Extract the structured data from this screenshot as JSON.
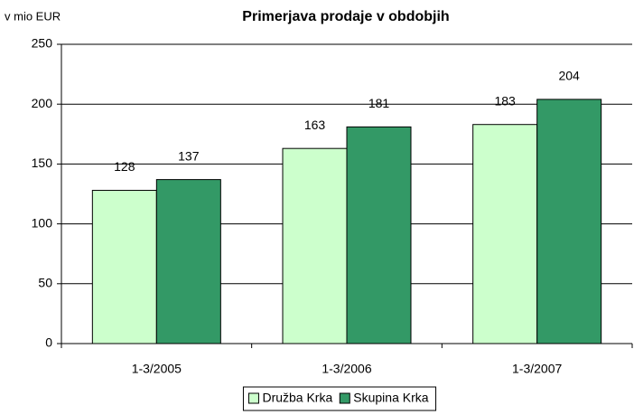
{
  "chart_data": {
    "type": "bar",
    "title": "Primerjava prodaje v obdobjih",
    "y_label": "v mio EUR",
    "categories": [
      "1-3/2005",
      "1-3/2006",
      "1-3/2007"
    ],
    "series": [
      {
        "name": "Družba Krka",
        "color": "#ccffcc",
        "values": [
          128,
          163,
          183
        ]
      },
      {
        "name": "Skupina Krka",
        "color": "#339966",
        "values": [
          137,
          181,
          204
        ]
      }
    ],
    "ylim": [
      0,
      250
    ],
    "yticks": [
      0,
      50,
      100,
      150,
      200,
      250
    ],
    "grid": true,
    "legend": "bottom"
  }
}
